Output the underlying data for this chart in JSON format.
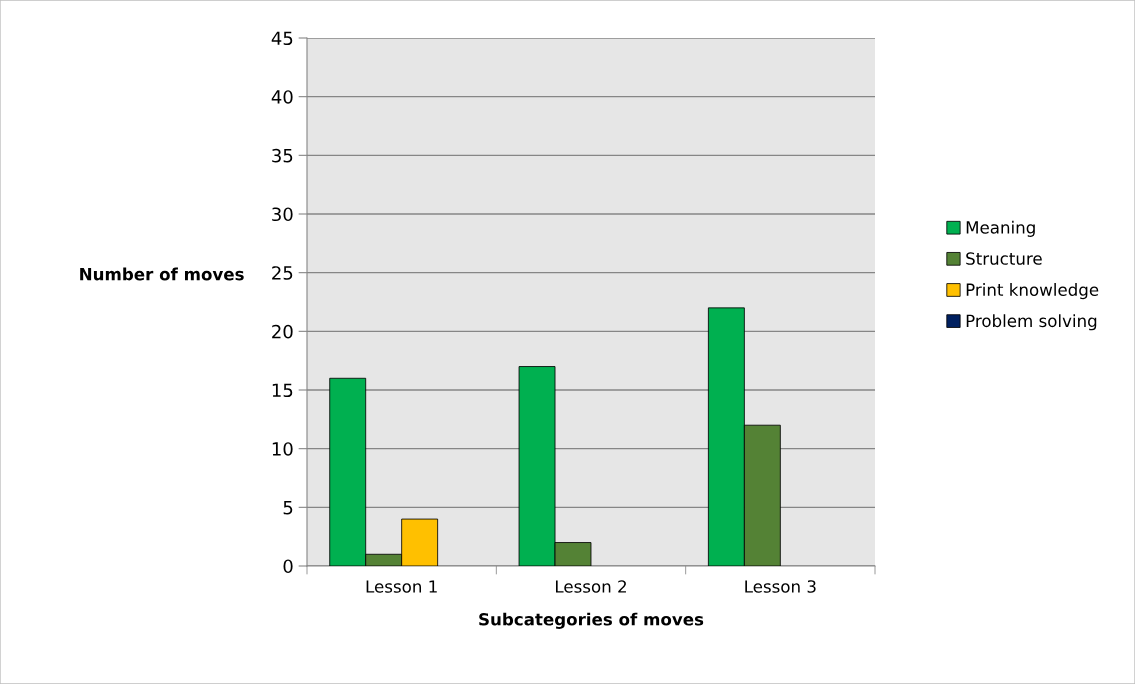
{
  "chart_data": {
    "type": "bar",
    "xlabel": "Subcategories of moves",
    "ylabel": "Number of moves",
    "categories": [
      "Lesson 1",
      "Lesson 2",
      "Lesson 3"
    ],
    "series": [
      {
        "name": "Meaning",
        "color": "#00b050",
        "values": [
          16,
          17,
          22
        ]
      },
      {
        "name": "Structure",
        "color": "#548235",
        "values": [
          1,
          2,
          12
        ]
      },
      {
        "name": "Print knowledge",
        "color": "#ffc000",
        "values": [
          4,
          0,
          0
        ]
      },
      {
        "name": "Problem solving",
        "color": "#002060",
        "values": [
          0,
          0,
          0
        ]
      }
    ],
    "ylim": [
      0,
      45
    ],
    "yticks": [
      0,
      5,
      10,
      15,
      20,
      25,
      30,
      35,
      40,
      45
    ],
    "grid": "y",
    "legend": "right"
  }
}
